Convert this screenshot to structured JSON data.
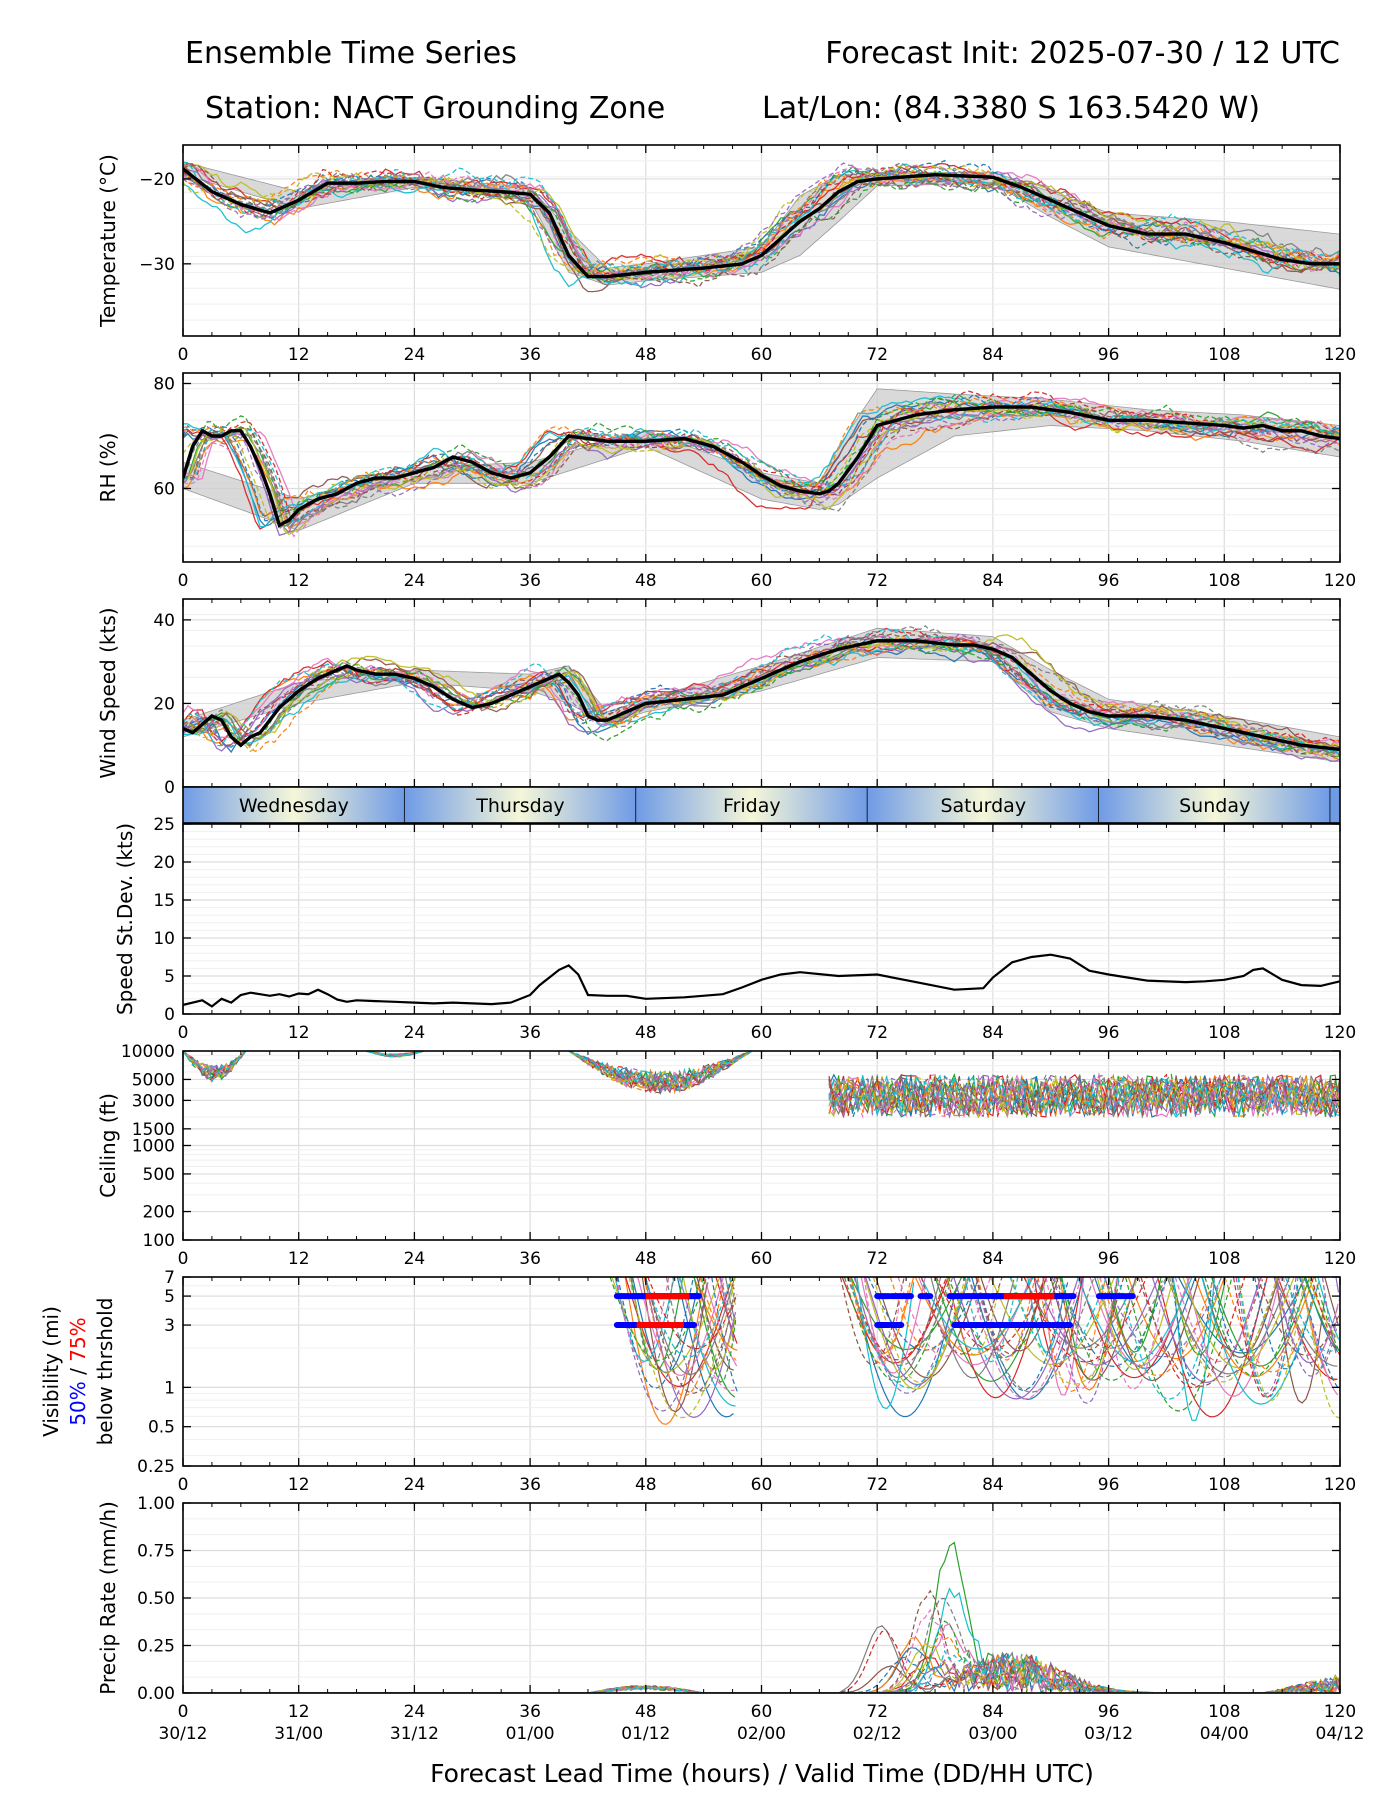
{
  "header": {
    "title_left": "Ensemble Time Series",
    "title_right": "Forecast Init: 2025-07-30 / 12 UTC",
    "station": "Station: NACT Grounding Zone",
    "latlon": "Lat/Lon: (84.3380 S 163.5420 W)"
  },
  "x_axis": {
    "label": "Forecast Lead Time (hours) / Valid Time (DD/HH UTC)",
    "range": [
      0,
      120
    ],
    "ticks": [
      0,
      12,
      24,
      36,
      48,
      60,
      72,
      84,
      96,
      108,
      120
    ],
    "tick_labels": [
      "0",
      "12",
      "24",
      "36",
      "48",
      "60",
      "72",
      "84",
      "96",
      "108",
      "120"
    ],
    "valid_time_labels": [
      "30/12",
      "31/00",
      "31/12",
      "01/00",
      "01/12",
      "02/00",
      "02/12",
      "03/00",
      "03/12",
      "04/00",
      "04/12"
    ]
  },
  "day_bar": {
    "days": [
      {
        "label": "Wednesday",
        "start": 0,
        "end": 23
      },
      {
        "label": "Thursday",
        "start": 23,
        "end": 47
      },
      {
        "label": "Friday",
        "start": 47,
        "end": 71
      },
      {
        "label": "Saturday",
        "start": 71,
        "end": 95
      },
      {
        "label": "Sunday",
        "start": 95,
        "end": 119
      }
    ]
  },
  "colors": {
    "mean": "#000000",
    "spread_fill": "#cccccc",
    "vis_50": "#0000ff",
    "vis_75": "#ff0000",
    "day_blue": "#6f9be6",
    "day_cream": "#f6f7d8",
    "members": [
      "#1f77b4",
      "#ff7f0e",
      "#2ca02c",
      "#d62728",
      "#9467bd",
      "#8c564b",
      "#e377c2",
      "#7f7f7f",
      "#bcbd22",
      "#17becf"
    ]
  },
  "chart_data": [
    {
      "id": "temperature",
      "type": "line",
      "ylabel": "Temperature (°C)",
      "ylim": [
        -38.5,
        -16
      ],
      "yticks": [
        -20,
        -30
      ],
      "ytick_labels": [
        "−20",
        "−30"
      ],
      "grid": true,
      "members": 20,
      "mean": {
        "x": [
          0,
          3,
          6,
          9,
          12,
          15,
          18,
          21,
          24,
          27,
          30,
          33,
          36,
          38,
          40,
          42,
          44,
          48,
          54,
          58,
          60,
          62,
          64,
          66,
          68,
          70,
          72,
          78,
          84,
          87,
          90,
          93,
          96,
          100,
          104,
          108,
          111,
          114,
          117,
          120
        ],
        "y": [
          -18.8,
          -21.5,
          -23.0,
          -24.0,
          -22.5,
          -20.5,
          -20.5,
          -20.3,
          -20.3,
          -21.0,
          -21.3,
          -21.5,
          -21.8,
          -24.0,
          -29.0,
          -31.5,
          -31.5,
          -31.0,
          -30.5,
          -30.0,
          -29.0,
          -27.0,
          -25.0,
          -23.5,
          -21.5,
          -20.3,
          -20.0,
          -19.5,
          -19.8,
          -21.0,
          -22.5,
          -24.0,
          -25.5,
          -26.5,
          -26.5,
          -27.5,
          -28.5,
          -29.5,
          -30.0,
          -30.0
        ]
      },
      "spread": {
        "x": [
          0,
          12,
          24,
          36,
          40,
          44,
          48,
          60,
          64,
          68,
          72,
          84,
          90,
          96,
          108,
          120
        ],
        "low": [
          -19.5,
          -23.5,
          -21.0,
          -22.5,
          -31.0,
          -32.5,
          -32.0,
          -31.0,
          -29.0,
          -25.0,
          -20.8,
          -20.5,
          -24.5,
          -28.0,
          -30.5,
          -33.0
        ],
        "high": [
          -18.0,
          -21.5,
          -19.8,
          -21.0,
          -26.0,
          -30.5,
          -30.0,
          -28.0,
          -22.0,
          -19.5,
          -19.3,
          -19.2,
          -21.5,
          -24.0,
          -25.0,
          -26.5
        ]
      }
    },
    {
      "id": "rh",
      "type": "line",
      "ylabel": "RH (%)",
      "ylim": [
        46,
        82
      ],
      "yticks": [
        60,
        80
      ],
      "ytick_labels": [
        "60",
        "80"
      ],
      "grid": true,
      "members": 20,
      "mean": {
        "x": [
          0,
          1,
          2,
          3,
          4,
          5,
          6,
          7,
          8,
          9,
          10,
          11,
          12,
          14,
          16,
          18,
          20,
          22,
          24,
          26,
          28,
          30,
          32,
          34,
          36,
          38,
          40,
          42,
          44,
          48,
          52,
          55,
          58,
          60,
          62,
          64,
          66,
          67,
          68,
          70,
          72,
          74,
          76,
          78,
          80,
          84,
          88,
          92,
          96,
          100,
          104,
          108,
          110,
          112,
          114,
          116,
          118,
          120
        ],
        "y": [
          62,
          68,
          71,
          70,
          70,
          71,
          71,
          68,
          64,
          59,
          53,
          54,
          56,
          58,
          59,
          61,
          62,
          62,
          63,
          64,
          66,
          65,
          63,
          62,
          63,
          66,
          70,
          69.5,
          69,
          69,
          69.5,
          68,
          65,
          62.5,
          60.5,
          59.5,
          59,
          59.5,
          61,
          66,
          72,
          73,
          74,
          74.5,
          75,
          75.5,
          75.5,
          74.5,
          73,
          73,
          72.5,
          72,
          71.5,
          72,
          71,
          71,
          70,
          69.5
        ]
      },
      "spread": {
        "x": [
          0,
          12,
          24,
          36,
          48,
          60,
          66,
          68,
          72,
          80,
          90,
          100,
          110,
          120
        ],
        "low": [
          60,
          52,
          61,
          61,
          68,
          58,
          56,
          57,
          62,
          70,
          72,
          71,
          69,
          66
        ],
        "high": [
          65,
          58,
          64,
          65,
          71,
          63,
          61,
          68,
          79,
          78,
          77,
          75,
          74,
          72
        ]
      }
    },
    {
      "id": "wind",
      "type": "line",
      "ylabel": "Wind Speed (kts)",
      "ylim": [
        0,
        45
      ],
      "yticks": [
        0,
        20,
        40
      ],
      "ytick_labels": [
        "0",
        "20",
        "40"
      ],
      "grid": true,
      "members": 20,
      "mean": {
        "x": [
          0,
          1,
          2,
          3,
          4,
          5,
          6,
          7,
          8,
          9,
          10,
          12,
          14,
          16,
          17,
          18,
          20,
          22,
          24,
          26,
          28,
          30,
          32,
          34,
          36,
          38,
          39,
          40,
          41,
          42,
          43,
          44,
          46,
          48,
          52,
          56,
          60,
          64,
          68,
          72,
          74,
          76,
          78,
          80,
          82,
          84,
          86,
          88,
          90,
          92,
          94,
          96,
          100,
          104,
          108,
          112,
          116,
          120
        ],
        "y": [
          14,
          13,
          15,
          17,
          16,
          12,
          10,
          12,
          13,
          16,
          19,
          23,
          26,
          28,
          29,
          28,
          27,
          27,
          26,
          24,
          21,
          19,
          20,
          22,
          24,
          26,
          27,
          25,
          22,
          17,
          16,
          16,
          18,
          20,
          21,
          22,
          26,
          30,
          33,
          35,
          35,
          35,
          34.5,
          34,
          34,
          33,
          31,
          27,
          23,
          20,
          18,
          17,
          17,
          16,
          14,
          12,
          10,
          9
        ]
      },
      "spread": {
        "x": [
          0,
          12,
          24,
          36,
          40,
          44,
          48,
          60,
          72,
          84,
          90,
          96,
          108,
          120
        ],
        "low": [
          12,
          20,
          25,
          23,
          20,
          15,
          18,
          23,
          31,
          30,
          18,
          14,
          10,
          6
        ],
        "high": [
          16,
          25,
          28,
          27,
          29,
          18,
          21,
          29,
          38,
          36,
          28,
          21,
          17,
          12
        ]
      }
    },
    {
      "id": "speed_stdev",
      "type": "line",
      "ylabel": "Speed St.Dev. (kts)",
      "ylim": [
        0,
        25
      ],
      "yticks": [
        0,
        5,
        10,
        15,
        20,
        25
      ],
      "ytick_labels": [
        "0",
        "5",
        "10",
        "15",
        "20",
        "25"
      ],
      "grid": true,
      "line": {
        "x": [
          0,
          2,
          3,
          4,
          5,
          6,
          7,
          8,
          9,
          10,
          11,
          12,
          13,
          14,
          15,
          16,
          17,
          18,
          20,
          22,
          24,
          26,
          28,
          30,
          32,
          34,
          36,
          37,
          38,
          39,
          40,
          41,
          42,
          44,
          46,
          48,
          52,
          56,
          58,
          60,
          62,
          64,
          68,
          72,
          76,
          80,
          83,
          84,
          86,
          88,
          90,
          92,
          94,
          96,
          100,
          104,
          106,
          108,
          110,
          111,
          112,
          114,
          116,
          118,
          120
        ],
        "y": [
          1.2,
          1.8,
          1.0,
          2.0,
          1.5,
          2.5,
          2.8,
          2.6,
          2.4,
          2.6,
          2.3,
          2.7,
          2.6,
          3.2,
          2.6,
          1.9,
          1.6,
          1.8,
          1.7,
          1.6,
          1.5,
          1.4,
          1.5,
          1.4,
          1.3,
          1.5,
          2.5,
          3.8,
          4.8,
          5.8,
          6.4,
          5.2,
          2.5,
          2.4,
          2.4,
          2.0,
          2.2,
          2.6,
          3.5,
          4.5,
          5.2,
          5.5,
          5.0,
          5.2,
          4.2,
          3.2,
          3.4,
          4.8,
          6.8,
          7.5,
          7.8,
          7.3,
          5.7,
          5.2,
          4.4,
          4.2,
          4.3,
          4.5,
          5.0,
          5.8,
          6.0,
          4.5,
          3.8,
          3.7,
          4.3
        ]
      }
    },
    {
      "id": "ceiling",
      "type": "line",
      "ylabel": "Ceiling (ft)",
      "scale": "log",
      "ylim": [
        100,
        10000
      ],
      "yticks": [
        100,
        200,
        500,
        1000,
        1500,
        3000,
        5000,
        10000
      ],
      "ytick_labels": [
        "100",
        "200",
        "500",
        "1000",
        "1500",
        "3000",
        "5000",
        "10000"
      ],
      "grid": true,
      "members": 20
    },
    {
      "id": "visibility",
      "type": "line",
      "ylabel": "Visibility (mi)",
      "ylabel_50": "50%",
      "ylabel_sep": " / ",
      "ylabel_75": "75%",
      "ylabel_sub": "below thrshold",
      "scale": "log",
      "ylim": [
        0.25,
        7
      ],
      "yticks": [
        0.25,
        0.5,
        1,
        3,
        5,
        7
      ],
      "ytick_labels": [
        "0.25",
        "0.5",
        "1",
        "3",
        "5",
        "7"
      ],
      "grid": true,
      "members": 20,
      "threshold_50_segments": [
        {
          "threshold": 5,
          "start": 45,
          "end": 53.5
        },
        {
          "threshold": 3,
          "start": 45,
          "end": 53.0
        },
        {
          "threshold": 5,
          "start": 72,
          "end": 75.5
        },
        {
          "threshold": 5,
          "start": 76.5,
          "end": 77.5
        },
        {
          "threshold": 5,
          "start": 79.5,
          "end": 92.5
        },
        {
          "threshold": 5,
          "start": 95,
          "end": 98.5
        },
        {
          "threshold": 3,
          "start": 72,
          "end": 74.5
        },
        {
          "threshold": 3,
          "start": 80,
          "end": 92.0
        }
      ],
      "threshold_75_segments": [
        {
          "threshold": 5,
          "start": 47,
          "end": 53.5
        },
        {
          "threshold": 3,
          "start": 46,
          "end": 53.0
        },
        {
          "threshold": 5,
          "start": 84,
          "end": 91.5
        }
      ]
    },
    {
      "id": "precip",
      "type": "line",
      "ylabel": "Precip Rate (mm/h)",
      "ylim": [
        0,
        1.0
      ],
      "yticks": [
        0.0,
        0.25,
        0.5,
        0.75,
        1.0
      ],
      "ytick_labels": [
        "0.00",
        "0.25",
        "0.50",
        "0.75",
        "1.00"
      ],
      "grid": true,
      "members": 20
    }
  ]
}
